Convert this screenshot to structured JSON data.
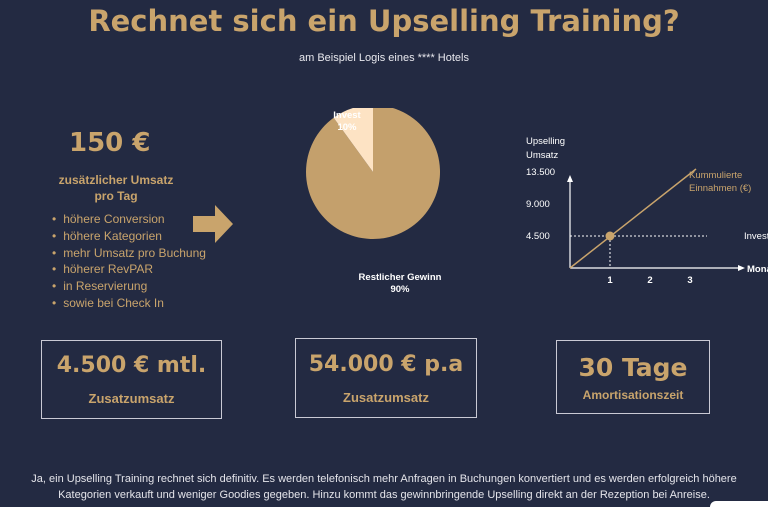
{
  "header": {
    "title": "Rechnet sich ein Upselling Training?",
    "subtitle": "am Beispiel Logis eines **** Hotels"
  },
  "left": {
    "amount": "150 €",
    "amount_desc_line1": "zusätzlicher Umsatz",
    "amount_desc_line2": "pro Tag",
    "benefits": [
      "höhere Conversion",
      "höhere Kategorien",
      "mehr Umsatz pro Buchung",
      "höherer RevPAR",
      "in Reservierung",
      "sowie bei Check In"
    ]
  },
  "colors": {
    "background": "#232a42",
    "accent": "#c9a46c",
    "invest_slice": "#fde3c4",
    "gain_slice": "#c4a06c"
  },
  "chart_data": [
    {
      "type": "pie",
      "slices": [
        {
          "name": "Invest",
          "label": "10%",
          "value": 10
        },
        {
          "name": "Restlicher Gewinn",
          "label": "90%",
          "value": 90
        }
      ]
    },
    {
      "type": "line",
      "ylabel_line1": "Upselling",
      "ylabel_line2": "Umsatz",
      "xlabel": "Monate",
      "x_ticks": [
        "1",
        "2",
        "3"
      ],
      "y_ticks": [
        "4.500",
        "9.000",
        "13.500"
      ],
      "x_tick_values": [
        1,
        2,
        3
      ],
      "y_tick_values": [
        4500,
        9000,
        13500
      ],
      "xlim": [
        0,
        3.3
      ],
      "ylim": [
        0,
        16000
      ],
      "series": [
        {
          "name_line1": "Kummulierte",
          "name_line2": "Einnahmen (€)",
          "x": [
            0,
            3
          ],
          "y": [
            0,
            13500
          ]
        }
      ],
      "reference": {
        "label": "Investition",
        "y": 4500
      },
      "marker": {
        "x": 1,
        "y": 4500
      }
    }
  ],
  "boxes": [
    {
      "value": "4.500 € mtl.",
      "label": "Zusatzumsatz"
    },
    {
      "value": "54.000 € p.a",
      "label": "Zusatzumsatz"
    },
    {
      "value": "30 Tage",
      "label": "Amortisationszeit"
    }
  ],
  "footer": {
    "line1": "Ja, ein Upselling Training rechnet sich definitiv.  Es werden telefonisch mehr Anfragen in Buchungen konvertiert und es werden erfolgreich höhere",
    "line2": "Kategorien verkauft und weniger Goodies gegeben. Hinzu kommt das gewinnbringende Upselling direkt an der Rezeption bei Anreise."
  }
}
